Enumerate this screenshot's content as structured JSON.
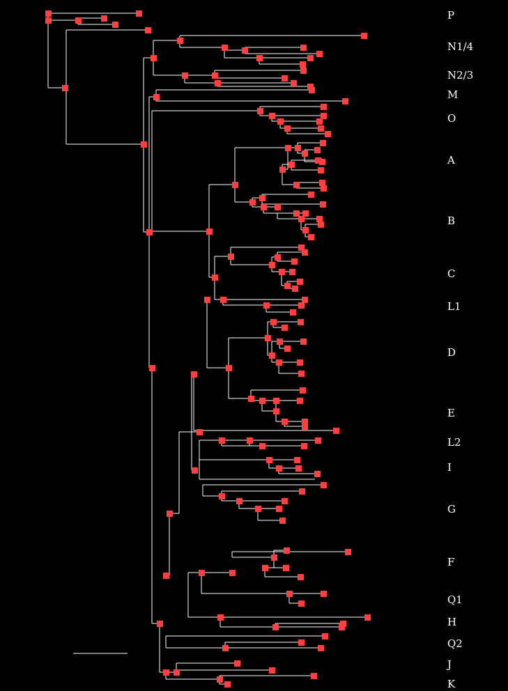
{
  "diagram": {
    "type": "phylogenetic-tree",
    "line_color": "#ffffff",
    "node_color": "#ff4040",
    "background": "#000000",
    "clade_labels": [
      "P",
      "N1/4",
      "N2/3",
      "M",
      "O",
      "A",
      "B",
      "C",
      "L1",
      "D",
      "E",
      "L2",
      "I",
      "G",
      "F",
      "Q1",
      "H",
      "Q2",
      "J",
      "K"
    ]
  }
}
